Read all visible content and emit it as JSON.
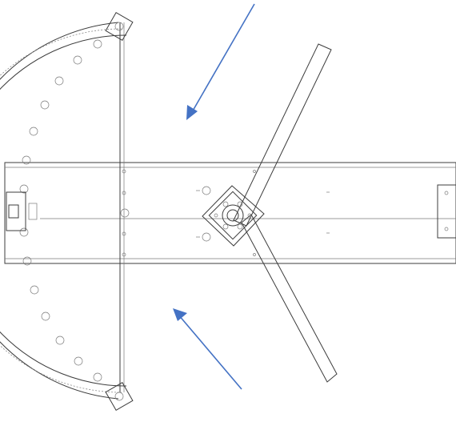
{
  "colors": {
    "background": "#ffffff",
    "line": "#3c3c3c",
    "arrow": "#4472c4"
  },
  "icons": {
    "arrow_top": "arrow-down-left-icon",
    "arrow_bottom": "arrow-up-left-icon"
  }
}
